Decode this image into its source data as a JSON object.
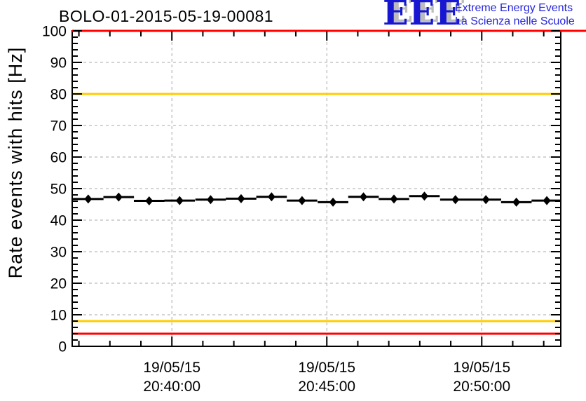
{
  "header": {
    "logo": {
      "acronym": "EEE",
      "line1": "Extreme Energy Events",
      "line2": "La Scienza nelle Scuole",
      "blue": "#2424dd",
      "shadow": "#bcbcbc"
    }
  },
  "chart_data": {
    "type": "scatter",
    "title": "BOLO-01-2015-05-19-00081",
    "xlabel": "",
    "ylabel": "Rate events with hits [Hz]",
    "ylim": [
      0,
      100
    ],
    "grid": "dashed gray at every major tick, both axes",
    "colors": {
      "axis": "#000000",
      "grid": "#a8a8a8",
      "marker": "#000000",
      "alarm": "#ff0000",
      "warning": "#ffcc00"
    },
    "y_axis": {
      "tick_values": [
        0,
        10,
        20,
        30,
        40,
        50,
        60,
        70,
        80,
        90,
        100
      ],
      "tick_labels": [
        "0",
        "10",
        "20",
        "30",
        "40",
        "50",
        "60",
        "70",
        "80",
        "90",
        "100"
      ],
      "minor_tick_step": 2
    },
    "x_axis": {
      "unit": "seconds relative to 19/05/15 20:40:00",
      "range_s": [
        -193,
        753
      ],
      "ticks": [
        {
          "date": "19/05/15",
          "time": "20:40:00",
          "t_s": 0
        },
        {
          "date": "19/05/15",
          "time": "20:45:00",
          "t_s": 300
        },
        {
          "date": "19/05/15",
          "time": "20:50:00",
          "t_s": 600
        }
      ],
      "minor_ticks_s": [
        -180,
        -120,
        -60,
        60,
        120,
        180,
        240,
        360,
        420,
        480,
        540,
        660,
        720
      ]
    },
    "thresholds": [
      {
        "name": "alarm-high",
        "value": 100,
        "color": "#ff0000",
        "extend_to_canvas_right": true
      },
      {
        "name": "warning-high",
        "value": 80,
        "color": "#ffcc00",
        "extend_to_canvas_right": false
      },
      {
        "name": "warning-low",
        "value": 8,
        "color": "#ffcc00",
        "extend_to_canvas_right": false
      },
      {
        "name": "alarm-low",
        "value": 4,
        "color": "#ff0000",
        "extend_to_canvas_right": false
      }
    ],
    "series": [
      {
        "name": "rate-events-with-hits",
        "marker": "diamond",
        "bin_half_width_s": 29.6,
        "t_s": [
          -162,
          -103,
          -44,
          15,
          75,
          134,
          193,
          252,
          312,
          371,
          430,
          489,
          549,
          608,
          667,
          726
        ],
        "rate_hz": [
          46.7,
          47.3,
          46.1,
          46.2,
          46.5,
          46.8,
          47.4,
          46.2,
          45.7,
          47.4,
          46.7,
          47.6,
          46.5,
          46.5,
          45.7,
          46.2
        ]
      }
    ]
  }
}
